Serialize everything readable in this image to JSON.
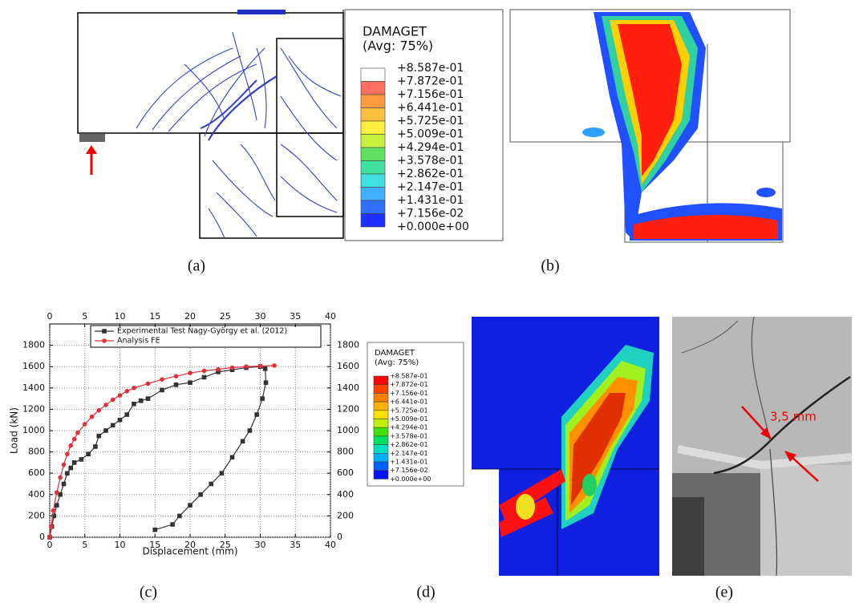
{
  "panels": {
    "a": {
      "label": "(a)"
    },
    "b": {
      "label": "(b)"
    },
    "c": {
      "label": "(c)"
    },
    "d": {
      "label": "(d)"
    },
    "e": {
      "label": "(e)",
      "annotation": "3,5 mm"
    }
  },
  "legend_a": {
    "title": "DAMAGET",
    "subtitle": "(Avg: 75%)",
    "levels": [
      "+8.587e-01",
      "+7.872e-01",
      "+7.156e-01",
      "+6.441e-01",
      "+5.725e-01",
      "+5.009e-01",
      "+4.294e-01",
      "+3.578e-01",
      "+2.862e-01",
      "+2.147e-01",
      "+1.431e-01",
      "+7.156e-02",
      "+0.000e+00"
    ],
    "colors": [
      "#ffffff",
      "#ff7060",
      "#ff9a40",
      "#ffc040",
      "#ffee40",
      "#c8f040",
      "#60e060",
      "#40e0a0",
      "#40e0e0",
      "#40b0ff",
      "#3070ff",
      "#2030ff"
    ]
  },
  "legend_d": {
    "title": "DAMAGET",
    "subtitle": "(Avg: 75%)",
    "levels": [
      "+8.587e-01",
      "+7.872e-01",
      "+7.156e-01",
      "+6.441e-01",
      "+5.725e-01",
      "+5.009e-01",
      "+4.294e-01",
      "+3.578e-01",
      "+2.862e-01",
      "+2.147e-01",
      "+1.431e-01",
      "+7.156e-02",
      "+0.000e+00"
    ],
    "colors": [
      "#ff0000",
      "#ff4000",
      "#ff8000",
      "#ffb000",
      "#ffe000",
      "#c0f000",
      "#40e000",
      "#00e060",
      "#00e0c0",
      "#00b0ff",
      "#0060ff",
      "#0010ff"
    ]
  },
  "chart_data": {
    "type": "line",
    "x_label": "Displacement (mm)",
    "y_label": "Load (kN)",
    "xlim": [
      0,
      40
    ],
    "xticks": [
      0,
      5,
      10,
      15,
      20,
      25,
      30,
      35,
      40
    ],
    "ylim": [
      0,
      2000
    ],
    "yticks": [
      0,
      200,
      400,
      600,
      800,
      1000,
      1200,
      1400,
      1600,
      1800
    ],
    "grid": true,
    "legend": "top",
    "series": [
      {
        "name": "Experimental Test Nagy-György et al. (2012)",
        "color": "#333333",
        "marker": "square",
        "x": [
          0,
          0.3,
          0.6,
          1,
          1.5,
          2,
          2.5,
          3,
          3.5,
          4.5,
          5.5,
          6.5,
          7,
          8,
          9,
          10,
          11,
          12,
          13,
          14,
          16,
          18,
          20,
          22,
          24,
          26,
          28,
          30,
          30.7,
          30.8,
          30.3,
          29.5,
          28.5,
          27.5,
          26,
          24.5,
          23,
          21.5,
          20,
          18.5,
          17.5,
          15
        ],
        "values": [
          0,
          100,
          200,
          300,
          400,
          500,
          600,
          650,
          700,
          730,
          780,
          850,
          950,
          1000,
          1050,
          1100,
          1150,
          1250,
          1280,
          1300,
          1380,
          1430,
          1450,
          1500,
          1550,
          1570,
          1590,
          1600,
          1580,
          1450,
          1300,
          1150,
          1000,
          900,
          750,
          600,
          500,
          400,
          300,
          200,
          120,
          70
        ]
      },
      {
        "name": "Analysis FE",
        "color": "#e0303a",
        "marker": "circle",
        "x": [
          0,
          0.2,
          0.5,
          1,
          1.5,
          2,
          2.5,
          3,
          3.5,
          4,
          5,
          6,
          7,
          8,
          9,
          10,
          11,
          12,
          14,
          16,
          18,
          20,
          22,
          24,
          26,
          28,
          30,
          32
        ],
        "values": [
          0,
          100,
          250,
          420,
          560,
          680,
          780,
          860,
          920,
          980,
          1060,
          1130,
          1190,
          1240,
          1290,
          1330,
          1370,
          1400,
          1440,
          1480,
          1510,
          1540,
          1560,
          1575,
          1590,
          1600,
          1605,
          1610
        ]
      }
    ]
  }
}
